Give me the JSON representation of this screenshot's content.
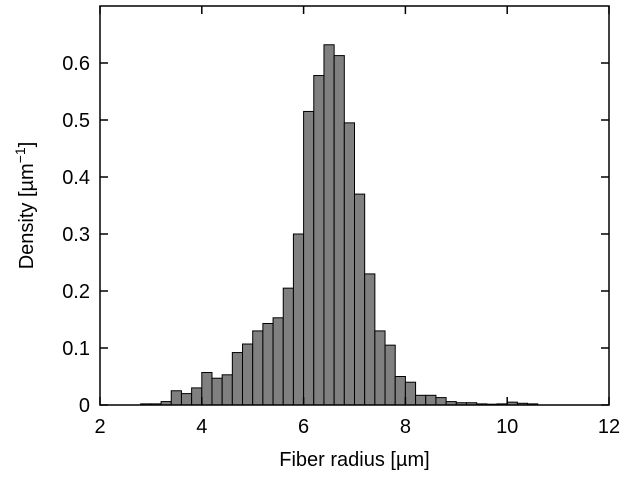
{
  "chart_data": {
    "type": "bar",
    "title": "",
    "xlabel": "Fiber radius [µm]",
    "ylabel": "Density [µm",
    "ylabel_sup": "−1",
    "ylabel_close": "]",
    "xlim": [
      2,
      12
    ],
    "ylim": [
      0,
      0.7
    ],
    "xticks": [
      2,
      4,
      6,
      8,
      10,
      12
    ],
    "xtick_labels": [
      "2",
      "4",
      "6",
      "8",
      "10",
      "12"
    ],
    "yticks": [
      0,
      0.1,
      0.2,
      0.3,
      0.4,
      0.5,
      0.6
    ],
    "ytick_labels": [
      "0",
      "0.1",
      "0.2",
      "0.3",
      "0.4",
      "0.5",
      "0.6"
    ],
    "grid": false,
    "bar_color": "#808080",
    "bin_width": 0.2,
    "bins": [
      {
        "x0": 2.8,
        "x1": 3.0,
        "value": 0.002
      },
      {
        "x0": 3.0,
        "x1": 3.2,
        "value": 0.002
      },
      {
        "x0": 3.2,
        "x1": 3.4,
        "value": 0.006
      },
      {
        "x0": 3.4,
        "x1": 3.6,
        "value": 0.025
      },
      {
        "x0": 3.6,
        "x1": 3.8,
        "value": 0.02
      },
      {
        "x0": 3.8,
        "x1": 4.0,
        "value": 0.03
      },
      {
        "x0": 4.0,
        "x1": 4.2,
        "value": 0.057
      },
      {
        "x0": 4.2,
        "x1": 4.4,
        "value": 0.047
      },
      {
        "x0": 4.4,
        "x1": 4.6,
        "value": 0.053
      },
      {
        "x0": 4.6,
        "x1": 4.8,
        "value": 0.092
      },
      {
        "x0": 4.8,
        "x1": 5.0,
        "value": 0.107
      },
      {
        "x0": 5.0,
        "x1": 5.2,
        "value": 0.13
      },
      {
        "x0": 5.2,
        "x1": 5.4,
        "value": 0.143
      },
      {
        "x0": 5.4,
        "x1": 5.6,
        "value": 0.153
      },
      {
        "x0": 5.6,
        "x1": 5.8,
        "value": 0.205
      },
      {
        "x0": 5.8,
        "x1": 6.0,
        "value": 0.3
      },
      {
        "x0": 6.0,
        "x1": 6.2,
        "value": 0.515
      },
      {
        "x0": 6.2,
        "x1": 6.4,
        "value": 0.578
      },
      {
        "x0": 6.4,
        "x1": 6.6,
        "value": 0.632
      },
      {
        "x0": 6.6,
        "x1": 6.8,
        "value": 0.613
      },
      {
        "x0": 6.8,
        "x1": 7.0,
        "value": 0.495
      },
      {
        "x0": 7.0,
        "x1": 7.2,
        "value": 0.37
      },
      {
        "x0": 7.2,
        "x1": 7.4,
        "value": 0.23
      },
      {
        "x0": 7.4,
        "x1": 7.6,
        "value": 0.13
      },
      {
        "x0": 7.6,
        "x1": 7.8,
        "value": 0.105
      },
      {
        "x0": 7.8,
        "x1": 8.0,
        "value": 0.05
      },
      {
        "x0": 8.0,
        "x1": 8.2,
        "value": 0.04
      },
      {
        "x0": 8.2,
        "x1": 8.4,
        "value": 0.017
      },
      {
        "x0": 8.4,
        "x1": 8.6,
        "value": 0.017
      },
      {
        "x0": 8.6,
        "x1": 8.8,
        "value": 0.013
      },
      {
        "x0": 8.8,
        "x1": 9.0,
        "value": 0.006
      },
      {
        "x0": 9.0,
        "x1": 9.2,
        "value": 0.004
      },
      {
        "x0": 9.2,
        "x1": 9.4,
        "value": 0.004
      },
      {
        "x0": 9.4,
        "x1": 9.6,
        "value": 0.002
      },
      {
        "x0": 9.6,
        "x1": 9.8,
        "value": 0.0
      },
      {
        "x0": 9.8,
        "x1": 10.0,
        "value": 0.002
      },
      {
        "x0": 10.0,
        "x1": 10.2,
        "value": 0.005
      },
      {
        "x0": 10.2,
        "x1": 10.4,
        "value": 0.003
      },
      {
        "x0": 10.4,
        "x1": 10.6,
        "value": 0.002
      }
    ]
  }
}
